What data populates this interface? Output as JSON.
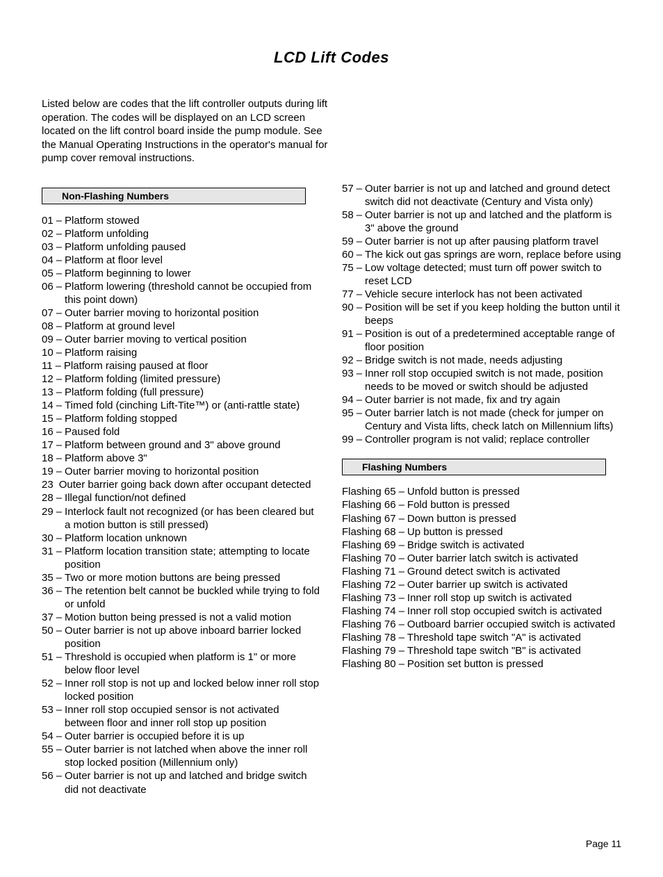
{
  "title": "LCD Lift Codes",
  "intro": "Listed below are codes that the lift controller outputs during lift operation. The codes will be displayed on an LCD screen located on the lift control board inside the pump module.  See the Manual Operating Instructions in the operator's manual for pump cover removal instructions.",
  "section_nonflash": "Non-Flashing Numbers",
  "section_flash": "Flashing Numbers",
  "page_label": "Page 11",
  "codes_col1": [
    {
      "code": "01",
      "sep": "–",
      "desc": "Platform stowed"
    },
    {
      "code": "02",
      "sep": "–",
      "desc": "Platform unfolding"
    },
    {
      "code": "03",
      "sep": "–",
      "desc": "Platform unfolding paused"
    },
    {
      "code": "04",
      "sep": "–",
      "desc": "Platform at floor level"
    },
    {
      "code": "05",
      "sep": "–",
      "desc": "Platform beginning to lower"
    },
    {
      "code": "06",
      "sep": "–",
      "desc": "Platform lowering (threshold cannot be occupied from this point down)"
    },
    {
      "code": "07",
      "sep": "–",
      "desc": "Outer barrier moving to horizontal position"
    },
    {
      "code": "08",
      "sep": "–",
      "desc": "Platform at ground level"
    },
    {
      "code": "09",
      "sep": "–",
      "desc": "Outer barrier moving to vertical position"
    },
    {
      "code": "10",
      "sep": "–",
      "desc": "Platform raising"
    },
    {
      "code": "11",
      "sep": "–",
      "desc": "Platform raising paused at floor"
    },
    {
      "code": "12",
      "sep": "–",
      "desc": "Platform folding (limited pressure)"
    },
    {
      "code": "13",
      "sep": "–",
      "desc": "Platform folding (full pressure)"
    },
    {
      "code": "14",
      "sep": "–",
      "desc": "Timed fold (cinching Lift-Tite™) or (anti-rattle state)"
    },
    {
      "code": "15",
      "sep": "–",
      "desc": "Platform folding stopped"
    },
    {
      "code": "16",
      "sep": "–",
      "desc": "Paused fold"
    },
    {
      "code": "17",
      "sep": "–",
      "desc": "Platform between ground and 3\" above ground"
    },
    {
      "code": "18",
      "sep": "–",
      "desc": "Platform above 3\""
    },
    {
      "code": "19",
      "sep": "–",
      "desc": "Outer barrier moving to horizontal position"
    },
    {
      "code": "23",
      "sep": " ",
      "desc": "Outer barrier going back down after occupant detected"
    },
    {
      "code": "28",
      "sep": "–",
      "desc": "Illegal function/not defined"
    },
    {
      "code": "29",
      "sep": "–",
      "desc": "Interlock fault not recognized (or has been cleared but a motion button is still pressed)"
    },
    {
      "code": "30",
      "sep": "–",
      "desc": "Platform location unknown"
    },
    {
      "code": "31",
      "sep": "–",
      "desc": "Platform location transition state; attempting to locate position"
    },
    {
      "code": "35",
      "sep": "–",
      "desc": "Two or more motion buttons are being pressed"
    },
    {
      "code": "36",
      "sep": "–",
      "desc": "The retention belt cannot be buckled while trying to fold or unfold"
    },
    {
      "code": "37",
      "sep": "–",
      "desc": "Motion button being pressed is not a valid motion"
    },
    {
      "code": "50",
      "sep": "–",
      "desc": "Outer barrier is not up above inboard barrier locked position"
    },
    {
      "code": "51",
      "sep": "–",
      "desc": "Threshold is occupied when platform is 1\" or more below floor level"
    },
    {
      "code": "52",
      "sep": "–",
      "desc": "Inner roll stop is not up and locked below inner roll stop locked position"
    },
    {
      "code": "53",
      "sep": "–",
      "desc": "Inner roll stop occupied sensor is not activated between floor and inner roll stop up position"
    },
    {
      "code": "54",
      "sep": "–",
      "desc": "Outer barrier is occupied before it is up"
    },
    {
      "code": "55",
      "sep": "–",
      "desc": "Outer barrier is not latched when above the inner roll stop locked position (Millennium only)"
    },
    {
      "code": "56",
      "sep": "–",
      "desc": "Outer barrier is not up and latched and bridge switch did not deactivate"
    }
  ],
  "codes_col2": [
    {
      "code": "57",
      "sep": "–",
      "desc": "Outer barrier is not up and latched and ground detect switch did not deactivate (Century and Vista only)"
    },
    {
      "code": "58",
      "sep": "–",
      "desc": "Outer barrier is not up and latched and the platform is 3\" above the ground"
    },
    {
      "code": "59",
      "sep": "–",
      "desc": "Outer barrier is not up after pausing platform travel"
    },
    {
      "code": "60",
      "sep": "–",
      "desc": "The kick out gas springs are worn, replace before using"
    },
    {
      "code": "75",
      "sep": "–",
      "desc": "Low voltage detected; must turn off power switch to reset LCD"
    },
    {
      "code": "77",
      "sep": "–",
      "desc": "Vehicle secure interlock has not been activated"
    },
    {
      "code": "90",
      "sep": "–",
      "desc": "Position will be set if you keep holding the button until it beeps"
    },
    {
      "code": "91",
      "sep": "–",
      "desc": "Position is out of a predetermined acceptable range of floor position"
    },
    {
      "code": "92",
      "sep": "–",
      "desc": "Bridge switch is not made, needs adjusting"
    },
    {
      "code": "93",
      "sep": "–",
      "desc": "Inner roll stop occupied switch is not made, position needs to be moved or switch should be adjusted"
    },
    {
      "code": "94",
      "sep": "–",
      "desc": "Outer barrier is not made, fix and try again"
    },
    {
      "code": "95",
      "sep": "–",
      "desc": "Outer barrier latch is not made (check for jumper on Century and Vista lifts, check latch on Millennium lifts)"
    },
    {
      "code": "99",
      "sep": "–",
      "desc": "Controller program is not valid; replace controller"
    }
  ],
  "flashing": [
    {
      "label": "Flashing 65",
      "sep": "–",
      "desc": "Unfold button is pressed"
    },
    {
      "label": "Flashing 66",
      "sep": "–",
      "desc": "Fold button is pressed"
    },
    {
      "label": "Flashing 67",
      "sep": "–",
      "desc": "Down button is pressed"
    },
    {
      "label": "Flashing 68",
      "sep": "–",
      "desc": "Up button is pressed"
    },
    {
      "label": "Flashing 69",
      "sep": "–",
      "desc": "Bridge switch is activated"
    },
    {
      "label": "Flashing 70",
      "sep": "–",
      "desc": "Outer barrier latch switch is activated"
    },
    {
      "label": "Flashing 71",
      "sep": "–",
      "desc": "Ground detect switch is activated"
    },
    {
      "label": "Flashing 72",
      "sep": "–",
      "desc": "Outer barrier up switch is activated"
    },
    {
      "label": "Flashing 73",
      "sep": "–",
      "desc": "Inner roll stop up switch is activated"
    },
    {
      "label": "Flashing 74",
      "sep": "–",
      "desc": "Inner roll stop occupied switch is activated"
    },
    {
      "label": "Flashing 76",
      "sep": "–",
      "desc": "Outboard barrier occupied switch is activated"
    },
    {
      "label": "Flashing 78",
      "sep": "–",
      "desc": "Threshold tape switch \"A\" is activated"
    },
    {
      "label": "Flashing 79",
      "sep": "–",
      "desc": "Threshold tape switch \"B\" is activated"
    },
    {
      "label": "Flashing 80",
      "sep": "–",
      "desc": "Position set button is pressed"
    }
  ]
}
